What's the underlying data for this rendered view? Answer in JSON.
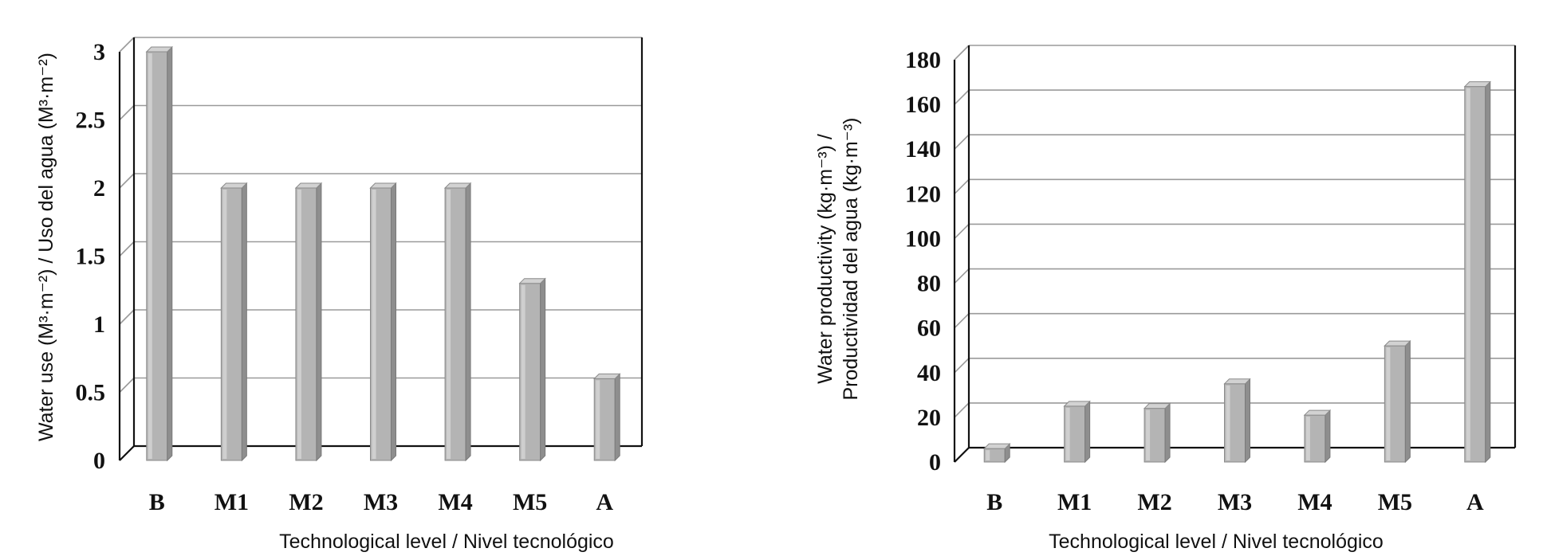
{
  "chart_data": [
    {
      "type": "bar",
      "categories": [
        "B",
        "M1",
        "M2",
        "M3",
        "M4",
        "M5",
        "A"
      ],
      "values": [
        3.0,
        2.0,
        2.0,
        2.0,
        2.0,
        1.3,
        0.6
      ],
      "title": "",
      "xlabel": "Technological level / Nivel tecnológico",
      "ylabel": "Water use (M³·m⁻²) / Uso del agua (M³·m⁻²)",
      "ylim": [
        0,
        3
      ],
      "yticks": [
        "0",
        "0.5",
        "1",
        "1.5",
        "2",
        "2.5",
        "3"
      ],
      "grid": true,
      "bar_color": "#b4b4b4"
    },
    {
      "type": "bar",
      "categories": [
        "B",
        "M1",
        "M2",
        "M3",
        "M4",
        "M5",
        "A"
      ],
      "values": [
        6,
        25,
        24,
        35,
        21,
        52,
        168
      ],
      "title": "",
      "xlabel": "Technological level / Nivel tecnológico",
      "ylabel_lines": [
        "Water productivity (kg·m⁻³) /",
        "Productividad del agua (kg·m⁻³)"
      ],
      "ylim": [
        0,
        180
      ],
      "yticks": [
        "0",
        "20",
        "40",
        "60",
        "80",
        "100",
        "120",
        "140",
        "160",
        "180"
      ],
      "grid": true,
      "bar_color": "#b4b4b4"
    }
  ]
}
